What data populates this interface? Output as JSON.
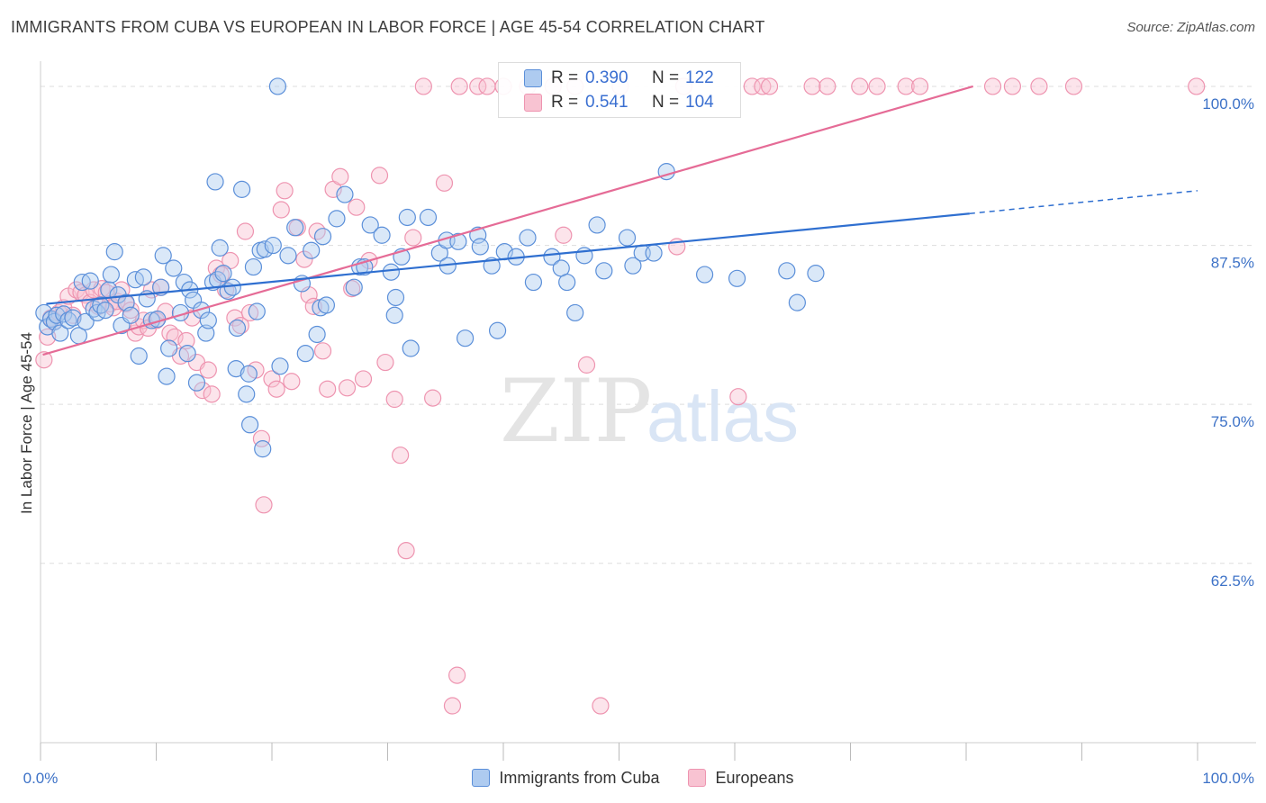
{
  "title": "IMMIGRANTS FROM CUBA VS EUROPEAN IN LABOR FORCE | AGE 45-54 CORRELATION CHART",
  "source": "Source: ZipAtlas.com",
  "watermark": {
    "zip": "ZIP",
    "atlas": "atlas"
  },
  "stats": {
    "rows": [
      {
        "r_label": "R =",
        "r_value": "0.390",
        "n_label": "N =",
        "n_value": "122"
      },
      {
        "r_label": "R =",
        "r_value": "0.541",
        "n_label": "N =",
        "n_value": "104"
      }
    ]
  },
  "legend": {
    "items": [
      "Immigrants from Cuba",
      "Europeans"
    ]
  },
  "colors": {
    "blue_fill": "#aecbf0",
    "blue_stroke": "#5b8fd9",
    "blue_line": "#2f6fd0",
    "pink_fill": "#f8c3d2",
    "pink_stroke": "#ee94b0",
    "pink_line": "#e56b96",
    "axis_text": "#3d72c7"
  },
  "chart_data": {
    "type": "scatter",
    "title": "IMMIGRANTS FROM CUBA VS EUROPEAN IN LABOR FORCE | AGE 45-54 CORRELATION CHART",
    "xlabel": "",
    "ylabel": "In Labor Force | Age 45-54",
    "xlim": [
      0,
      100
    ],
    "ylim": [
      48.4,
      101.2
    ],
    "x_tick_labels": [
      "0.0%",
      "100.0%"
    ],
    "y_ticks": [
      62.5,
      75.0,
      87.5,
      100.0
    ],
    "y_tick_labels": [
      "62.5%",
      "75.0%",
      "87.5%",
      "100.0%"
    ],
    "grid": "horizontal dashed",
    "legend_position": "bottom-center",
    "series": [
      {
        "name": "Immigrants from Cuba",
        "color": "#5b8fd9",
        "trend": {
          "x_solid": [
            0.5,
            80.3
          ],
          "y_solid": [
            82.9,
            90.0
          ],
          "x_dashed": [
            80.3,
            100
          ],
          "y_dashed": [
            90.0,
            91.8
          ]
        },
        "points": [
          [
            0.3,
            82.2
          ],
          [
            0.6,
            81.1
          ],
          [
            0.9,
            81.7
          ],
          [
            1.2,
            81.5
          ],
          [
            1.4,
            82.0
          ],
          [
            1.7,
            80.6
          ],
          [
            2.0,
            82.1
          ],
          [
            2.4,
            81.6
          ],
          [
            2.8,
            81.8
          ],
          [
            3.3,
            80.4
          ],
          [
            3.6,
            84.6
          ],
          [
            3.9,
            81.5
          ],
          [
            4.3,
            84.7
          ],
          [
            4.6,
            82.5
          ],
          [
            4.9,
            82.2
          ],
          [
            5.2,
            82.8
          ],
          [
            5.6,
            82.4
          ],
          [
            5.9,
            84.0
          ],
          [
            6.1,
            85.2
          ],
          [
            6.4,
            87.0
          ],
          [
            6.7,
            83.6
          ],
          [
            7.0,
            81.2
          ],
          [
            7.4,
            83.0
          ],
          [
            7.8,
            82.0
          ],
          [
            8.2,
            84.8
          ],
          [
            8.5,
            78.8
          ],
          [
            8.9,
            85.0
          ],
          [
            9.2,
            83.3
          ],
          [
            9.6,
            81.6
          ],
          [
            10.1,
            81.7
          ],
          [
            10.4,
            84.2
          ],
          [
            10.6,
            86.7
          ],
          [
            10.9,
            77.2
          ],
          [
            11.1,
            79.4
          ],
          [
            11.5,
            85.7
          ],
          [
            12.1,
            82.2
          ],
          [
            12.4,
            84.6
          ],
          [
            12.7,
            79.0
          ],
          [
            12.9,
            84.0
          ],
          [
            13.2,
            83.2
          ],
          [
            13.5,
            76.7
          ],
          [
            13.9,
            82.4
          ],
          [
            14.3,
            80.6
          ],
          [
            14.5,
            81.6
          ],
          [
            14.9,
            84.6
          ],
          [
            15.3,
            84.8
          ],
          [
            15.1,
            92.5
          ],
          [
            15.5,
            87.3
          ],
          [
            15.8,
            85.3
          ],
          [
            16.2,
            83.9
          ],
          [
            16.6,
            84.2
          ],
          [
            16.9,
            77.8
          ],
          [
            17.0,
            81.0
          ],
          [
            17.4,
            91.9
          ],
          [
            17.8,
            75.8
          ],
          [
            18.0,
            77.4
          ],
          [
            18.1,
            73.4
          ],
          [
            18.4,
            85.8
          ],
          [
            18.7,
            82.3
          ],
          [
            19.0,
            87.1
          ],
          [
            19.4,
            87.2
          ],
          [
            19.2,
            71.5
          ],
          [
            20.1,
            87.5
          ],
          [
            20.5,
            100.0
          ],
          [
            20.7,
            78.0
          ],
          [
            21.4,
            86.7
          ],
          [
            22.0,
            88.9
          ],
          [
            22.6,
            84.5
          ],
          [
            22.9,
            79.0
          ],
          [
            23.4,
            87.1
          ],
          [
            23.9,
            80.5
          ],
          [
            24.2,
            82.6
          ],
          [
            24.4,
            88.2
          ],
          [
            24.7,
            82.8
          ],
          [
            25.6,
            89.6
          ],
          [
            26.3,
            91.5
          ],
          [
            27.1,
            84.2
          ],
          [
            27.6,
            85.8
          ],
          [
            28.0,
            85.8
          ],
          [
            28.5,
            89.1
          ],
          [
            29.5,
            88.3
          ],
          [
            30.3,
            85.4
          ],
          [
            30.7,
            83.4
          ],
          [
            30.6,
            82.0
          ],
          [
            31.2,
            86.6
          ],
          [
            31.7,
            89.7
          ],
          [
            32.0,
            79.4
          ],
          [
            33.5,
            89.7
          ],
          [
            34.5,
            86.9
          ],
          [
            35.2,
            85.9
          ],
          [
            35.1,
            87.9
          ],
          [
            36.1,
            87.8
          ],
          [
            36.7,
            80.2
          ],
          [
            37.8,
            88.3
          ],
          [
            38.0,
            87.4
          ],
          [
            39.0,
            85.9
          ],
          [
            39.5,
            80.8
          ],
          [
            40.1,
            87.0
          ],
          [
            41.1,
            86.6
          ],
          [
            42.6,
            84.6
          ],
          [
            42.1,
            88.1
          ],
          [
            44.2,
            86.6
          ],
          [
            45.0,
            85.7
          ],
          [
            45.5,
            84.6
          ],
          [
            46.2,
            82.2
          ],
          [
            47.0,
            86.7
          ],
          [
            48.1,
            89.1
          ],
          [
            48.7,
            85.5
          ],
          [
            50.7,
            88.1
          ],
          [
            51.2,
            85.9
          ],
          [
            52.0,
            86.9
          ],
          [
            53.0,
            86.9
          ],
          [
            54.1,
            93.3
          ],
          [
            57.4,
            85.2
          ],
          [
            60.2,
            84.9
          ],
          [
            64.5,
            85.5
          ],
          [
            65.4,
            83.0
          ],
          [
            67.0,
            85.3
          ]
        ]
      },
      {
        "name": "Europeans",
        "color": "#ee94b0",
        "trend": {
          "x_solid": [
            0.2,
            80.6
          ],
          "y_solid": [
            78.9,
            100.0
          ]
        },
        "points": [
          [
            0.3,
            78.5
          ],
          [
            0.6,
            80.3
          ],
          [
            0.9,
            81.8
          ],
          [
            1.2,
            81.5
          ],
          [
            1.6,
            82.2
          ],
          [
            2.0,
            82.6
          ],
          [
            2.4,
            83.5
          ],
          [
            2.8,
            82.0
          ],
          [
            3.1,
            84.0
          ],
          [
            3.5,
            83.8
          ],
          [
            3.9,
            83.6
          ],
          [
            4.3,
            83.0
          ],
          [
            4.6,
            84.0
          ],
          [
            5.0,
            82.7
          ],
          [
            5.3,
            84.1
          ],
          [
            5.7,
            83.8
          ],
          [
            6.0,
            82.9
          ],
          [
            6.3,
            82.6
          ],
          [
            6.6,
            83.1
          ],
          [
            7.0,
            84.0
          ],
          [
            7.4,
            82.9
          ],
          [
            7.8,
            82.4
          ],
          [
            8.2,
            80.6
          ],
          [
            8.5,
            81.1
          ],
          [
            8.9,
            81.6
          ],
          [
            9.3,
            81.0
          ],
          [
            9.6,
            84.0
          ],
          [
            10.0,
            81.6
          ],
          [
            10.4,
            84.2
          ],
          [
            10.8,
            82.3
          ],
          [
            11.2,
            80.6
          ],
          [
            11.6,
            80.3
          ],
          [
            12.1,
            78.8
          ],
          [
            12.6,
            80.0
          ],
          [
            13.1,
            81.8
          ],
          [
            13.5,
            78.3
          ],
          [
            14.0,
            76.1
          ],
          [
            14.5,
            77.7
          ],
          [
            14.8,
            75.8
          ],
          [
            15.2,
            85.7
          ],
          [
            15.6,
            85.2
          ],
          [
            16.0,
            84.0
          ],
          [
            16.4,
            86.3
          ],
          [
            16.8,
            81.8
          ],
          [
            17.3,
            81.2
          ],
          [
            17.7,
            88.6
          ],
          [
            18.1,
            82.2
          ],
          [
            18.6,
            77.7
          ],
          [
            19.1,
            72.3
          ],
          [
            19.3,
            67.1
          ],
          [
            20.0,
            77.0
          ],
          [
            20.4,
            76.2
          ],
          [
            20.8,
            90.3
          ],
          [
            21.1,
            91.8
          ],
          [
            21.7,
            76.8
          ],
          [
            22.2,
            88.9
          ],
          [
            22.8,
            86.4
          ],
          [
            23.2,
            83.6
          ],
          [
            23.6,
            82.7
          ],
          [
            23.9,
            88.6
          ],
          [
            24.4,
            79.2
          ],
          [
            24.8,
            76.2
          ],
          [
            25.3,
            91.9
          ],
          [
            25.9,
            92.9
          ],
          [
            26.5,
            76.3
          ],
          [
            26.9,
            84.1
          ],
          [
            27.3,
            90.5
          ],
          [
            27.9,
            77.0
          ],
          [
            28.4,
            86.3
          ],
          [
            29.3,
            93.0
          ],
          [
            29.8,
            78.3
          ],
          [
            30.6,
            75.4
          ],
          [
            31.1,
            71.0
          ],
          [
            31.6,
            63.5
          ],
          [
            32.2,
            88.1
          ],
          [
            33.1,
            100.0
          ],
          [
            33.9,
            75.5
          ],
          [
            34.9,
            92.4
          ],
          [
            35.6,
            51.3
          ],
          [
            36.2,
            100.0
          ],
          [
            37.8,
            100.0
          ],
          [
            38.6,
            100.0
          ],
          [
            40.0,
            100.0
          ],
          [
            42.1,
            100.0
          ],
          [
            44.3,
            100.0
          ],
          [
            45.2,
            88.3
          ],
          [
            46.2,
            100.0
          ],
          [
            47.2,
            78.1
          ],
          [
            48.4,
            51.3
          ],
          [
            50.1,
            100.0
          ],
          [
            55.0,
            87.4
          ],
          [
            60.3,
            75.6
          ],
          [
            61.5,
            100.0
          ],
          [
            62.4,
            100.0
          ],
          [
            63.0,
            100.0
          ],
          [
            66.7,
            100.0
          ],
          [
            68.0,
            100.0
          ],
          [
            70.8,
            100.0
          ],
          [
            72.3,
            100.0
          ],
          [
            74.8,
            100.0
          ],
          [
            76.0,
            100.0
          ],
          [
            82.3,
            100.0
          ],
          [
            84.0,
            100.0
          ],
          [
            86.3,
            100.0
          ],
          [
            89.3,
            100.0
          ],
          [
            99.9,
            100.0
          ],
          [
            36.0,
            53.7
          ],
          [
            55.6,
            100.0
          ]
        ]
      }
    ]
  }
}
